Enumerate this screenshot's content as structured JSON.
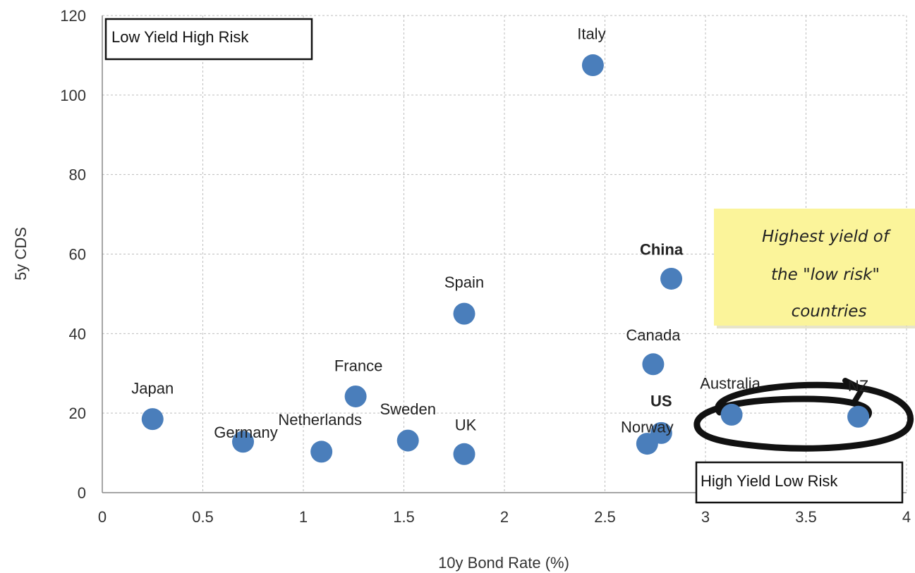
{
  "chart_data": {
    "type": "scatter",
    "xlabel": "10y Bond Rate  (%)",
    "ylabel": "5y CDS",
    "xlim": [
      0,
      4
    ],
    "ylim": [
      0,
      120
    ],
    "x_ticks": [
      "0",
      "0.5",
      "1",
      "1.5",
      "2",
      "2.5",
      "3",
      "3.5",
      "4"
    ],
    "y_ticks": [
      "0",
      "20",
      "40",
      "60",
      "80",
      "100",
      "120"
    ],
    "grid": true,
    "point_color": "#4a7ebb",
    "points": [
      {
        "label": "Japan",
        "x": 0.25,
        "y": 18.5,
        "bold": false
      },
      {
        "label": "Germany",
        "x": 0.7,
        "y": 12.8,
        "bold": false
      },
      {
        "label": "Netherlands",
        "x": 1.09,
        "y": 10.3,
        "bold": false
      },
      {
        "label": "France",
        "x": 1.26,
        "y": 24.2,
        "bold": false
      },
      {
        "label": "Sweden",
        "x": 1.52,
        "y": 13.1,
        "bold": false
      },
      {
        "label": "UK",
        "x": 1.8,
        "y": 9.7,
        "bold": false
      },
      {
        "label": "Spain",
        "x": 1.8,
        "y": 45.0,
        "bold": false
      },
      {
        "label": "Italy",
        "x": 2.44,
        "y": 107.5,
        "bold": false
      },
      {
        "label": "China",
        "x": 2.83,
        "y": 53.8,
        "bold": true
      },
      {
        "label": "Canada",
        "x": 2.74,
        "y": 32.3,
        "bold": false
      },
      {
        "label": "Norway",
        "x": 2.71,
        "y": 12.3,
        "bold": false
      },
      {
        "label": "US",
        "x": 2.78,
        "y": 15.0,
        "bold": true
      },
      {
        "label": "Australia",
        "x": 3.13,
        "y": 19.6,
        "bold": false
      },
      {
        "label": "NZ",
        "x": 3.76,
        "y": 19.1,
        "bold": false
      }
    ],
    "annotations": {
      "low_yield_high_risk": "Low Yield High Risk",
      "high_yield_low_risk": "High Yield Low Risk",
      "sticky_note": [
        "Highest yield of",
        "the \"low risk\"",
        "countries"
      ],
      "sticky_note_color": "#fbf49a"
    }
  }
}
